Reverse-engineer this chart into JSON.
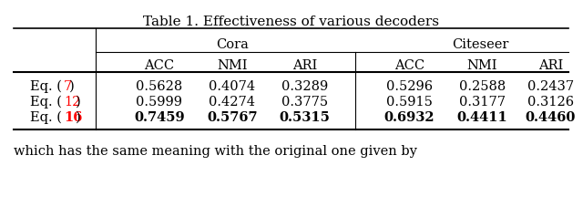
{
  "title": "Table 1. Effectiveness of various decoders",
  "col_groups": [
    {
      "label": "Cora",
      "cols": [
        "ACC",
        "NMI",
        "ARI"
      ]
    },
    {
      "label": "Citeseer",
      "cols": [
        "ACC",
        "NMI",
        "ARI"
      ]
    }
  ],
  "row_labels": [
    "Eq. (7)",
    "Eq. (12)",
    "Eq. (16)"
  ],
  "row_label_numbers": [
    "7",
    "12",
    "16"
  ],
  "data": [
    [
      0.5628,
      0.4074,
      0.3289,
      0.5296,
      0.2588,
      0.2437
    ],
    [
      0.5999,
      0.4274,
      0.3775,
      0.5915,
      0.3177,
      0.3126
    ],
    [
      0.7459,
      0.5767,
      0.5315,
      0.6932,
      0.4411,
      0.446
    ]
  ],
  "bold_row": 2,
  "red_color": "#FF0000",
  "bg_color": "#FFFFFF",
  "text_color": "#000000",
  "bottom_text": "which has the same meaning with the original one given by",
  "font_size": 10.5
}
